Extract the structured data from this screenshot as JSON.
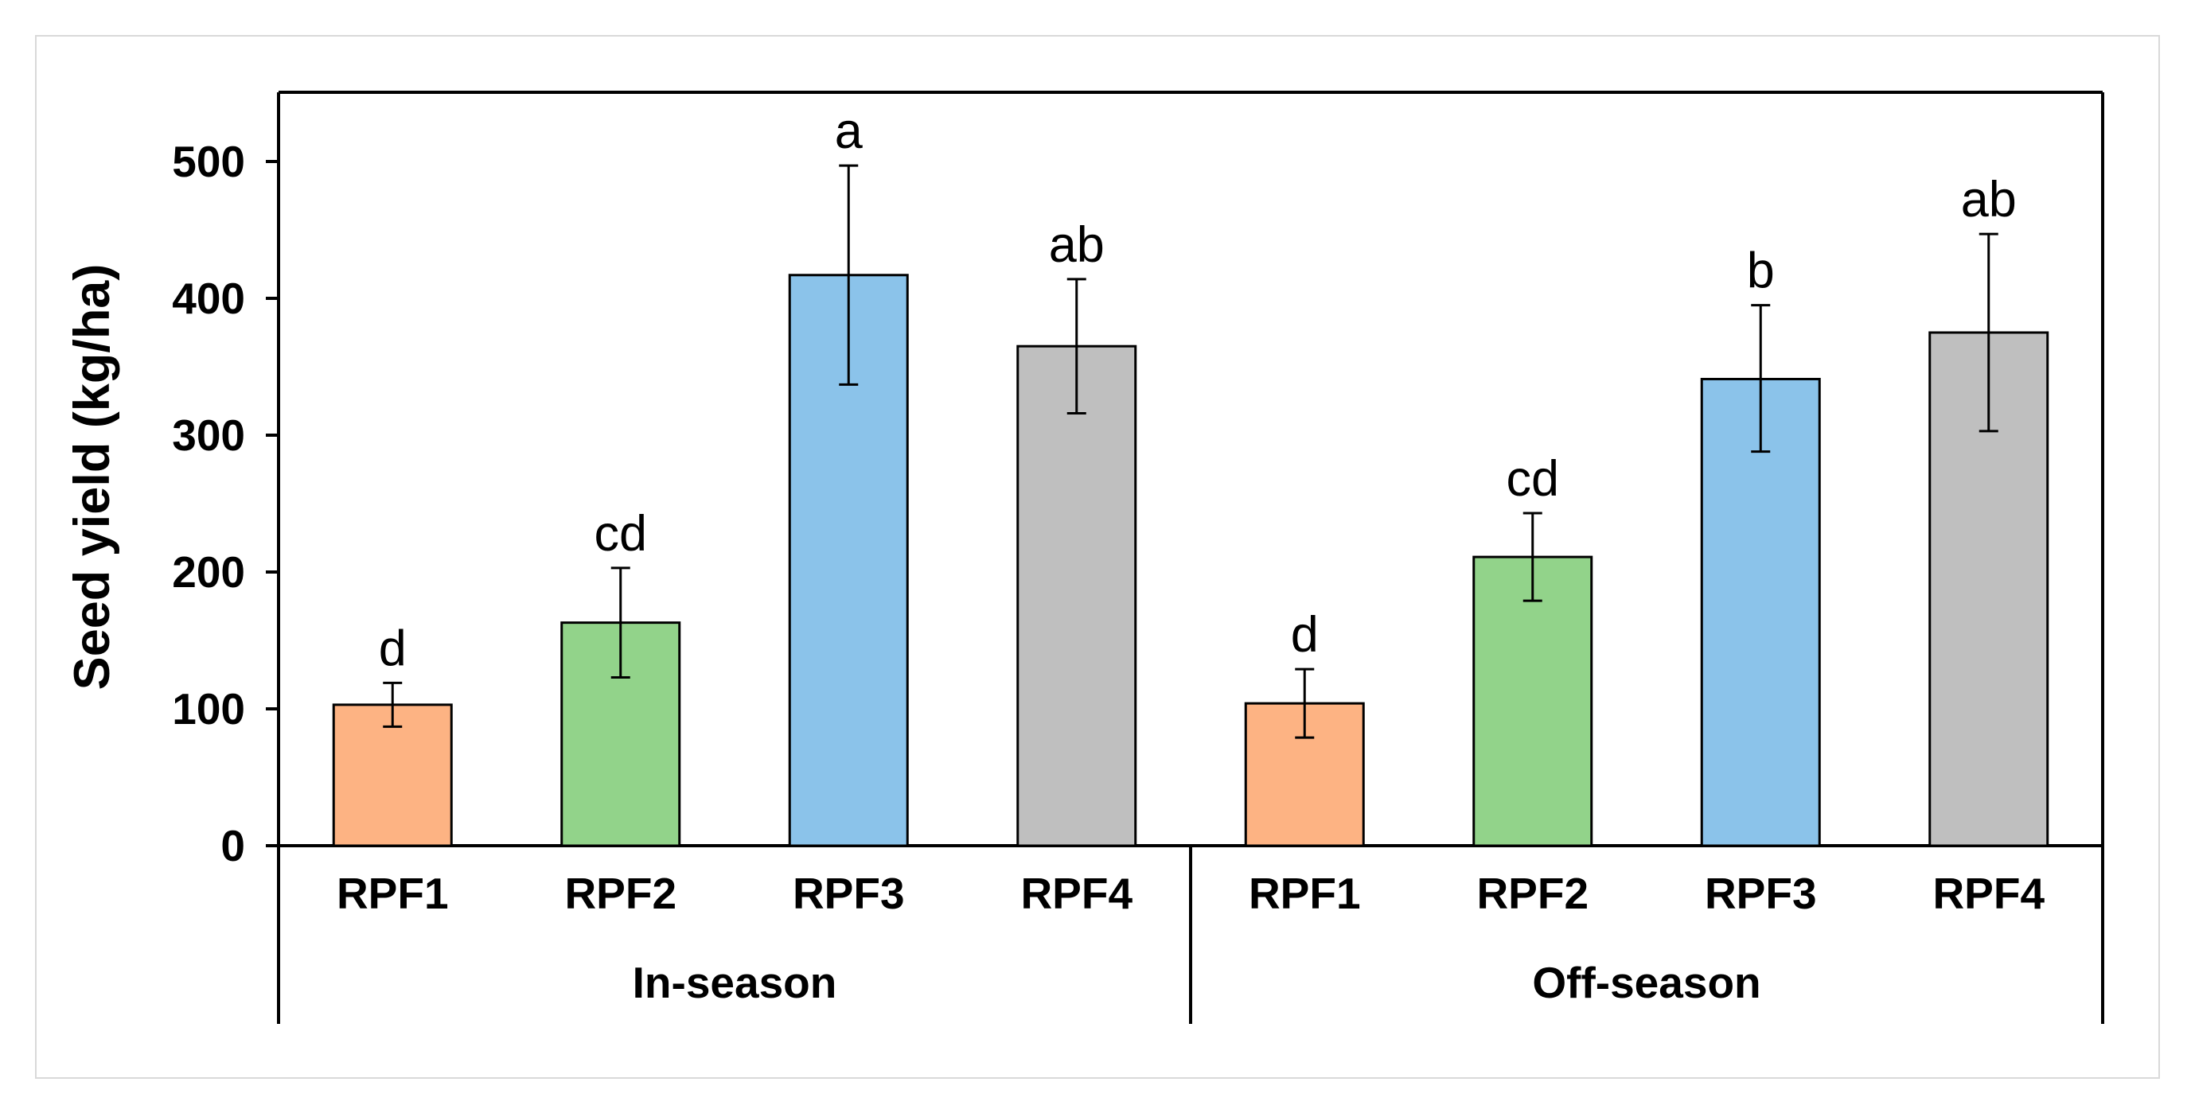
{
  "chart_data": {
    "type": "bar",
    "ylabel": "Seed yield (kg/ha)",
    "xlabel": "",
    "ylim": [
      0,
      550
    ],
    "yticks": [
      0,
      100,
      200,
      300,
      400,
      500
    ],
    "grid": false,
    "legend": "none",
    "groups": [
      {
        "label": "In-season",
        "bars": [
          {
            "category": "RPF1",
            "value": 103,
            "err_low": 87,
            "err_high": 119,
            "letter": "d",
            "color": "#FDB383"
          },
          {
            "category": "RPF2",
            "value": 163,
            "err_low": 123,
            "err_high": 203,
            "letter": "cd",
            "color": "#92D38A"
          },
          {
            "category": "RPF3",
            "value": 417,
            "err_low": 337,
            "err_high": 497,
            "letter": "a",
            "color": "#8BC3EA"
          },
          {
            "category": "RPF4",
            "value": 365,
            "err_low": 316,
            "err_high": 414,
            "letter": "ab",
            "color": "#BFBFBF"
          }
        ]
      },
      {
        "label": "Off-season",
        "bars": [
          {
            "category": "RPF1",
            "value": 104,
            "err_low": 79,
            "err_high": 129,
            "letter": "d",
            "color": "#FDB383"
          },
          {
            "category": "RPF2",
            "value": 211,
            "err_low": 179,
            "err_high": 243,
            "letter": "cd",
            "color": "#92D38A"
          },
          {
            "category": "RPF3",
            "value": 341,
            "err_low": 288,
            "err_high": 395,
            "letter": "b",
            "color": "#8BC3EA"
          },
          {
            "category": "RPF4",
            "value": 375,
            "err_low": 303,
            "err_high": 447,
            "letter": "ab",
            "color": "#BFBFBF"
          }
        ]
      }
    ]
  }
}
